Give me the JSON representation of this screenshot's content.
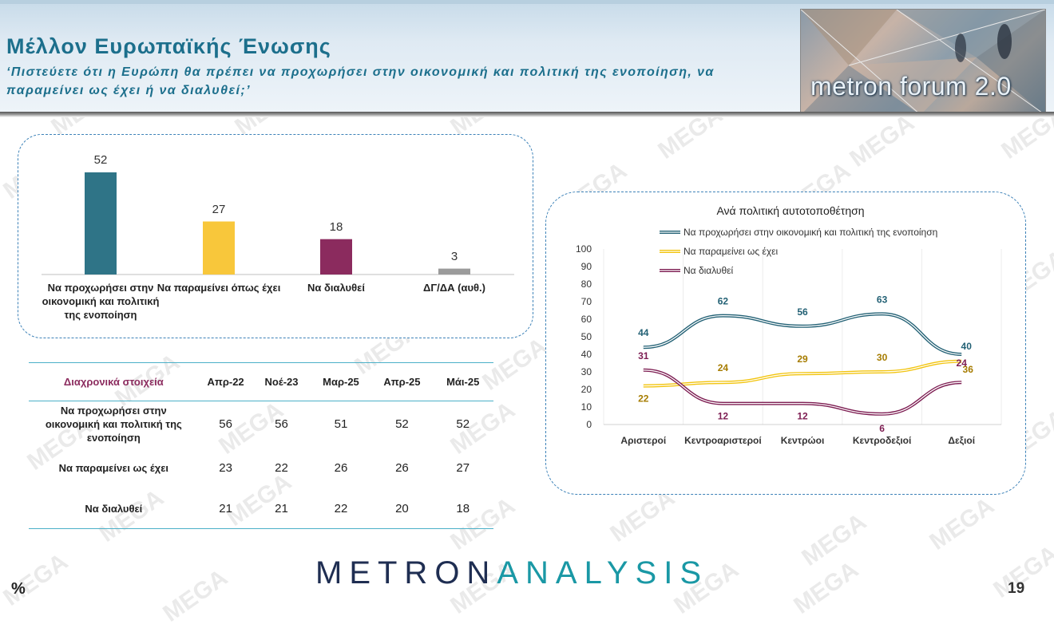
{
  "header": {
    "title": "Μέλλον Ευρωπαϊκής Ένωσης",
    "subtitle": "‘Πιστεύετε ότι η Ευρώπη θα πρέπει να προχωρήσει στην οικονομική και πολιτική της ενοποίηση, να παραμείνει ως έχει ή να διαλυθεί;’",
    "logo_text": "metron forum 2.0"
  },
  "colors": {
    "teal": "#2f7487",
    "yellow": "#f8c73b",
    "maroon": "#8b2b5e",
    "gray": "#9b9b9b",
    "accent": "#1c6f8c",
    "line_teal": "#236175",
    "line_yellow": "#f2c40e",
    "line_maroon": "#7d1d52"
  },
  "chart_data": [
    {
      "type": "bar",
      "categories": [
        "Να προχωρήσει στην οικονομική και πολιτική της ενοποίηση",
        "Να παραμείνει όπως έχει",
        "Να διαλυθεί",
        "ΔΓ/ΔΑ (αυθ.)"
      ],
      "values": [
        52,
        27,
        18,
        3
      ],
      "ylim": [
        0,
        52
      ],
      "grid": false,
      "legend": "none"
    },
    {
      "type": "line",
      "title": "Ανά πολιτική αυτοτοποθέτηση",
      "categories": [
        "Αριστεροί",
        "Κεντροαριστεροί",
        "Κεντρώοι",
        "Κεντροδεξιοί",
        "Δεξιοί"
      ],
      "yticks": [
        "0",
        "10",
        "20",
        "30",
        "40",
        "50",
        "60",
        "70",
        "80",
        "90",
        "100"
      ],
      "ylim": [
        0,
        100
      ],
      "grid": true,
      "legend": "top",
      "series": [
        {
          "name": "Να προχωρήσει στην οικονομική και πολιτική της ενοποίηση",
          "values": [
            44,
            62,
            56,
            63,
            40
          ]
        },
        {
          "name": "Να παραμείνει ως έχει",
          "values": [
            22,
            24,
            29,
            30,
            36
          ]
        },
        {
          "name": "Να διαλυθεί",
          "values": [
            31,
            12,
            12,
            6,
            24
          ]
        }
      ]
    },
    {
      "type": "table",
      "header": "Διαχρονικά στοιχεία",
      "columns": [
        "Απρ-22",
        "Νοέ-23",
        "Μαρ-25",
        "Απρ-25",
        "Μάι-25"
      ],
      "rows": [
        {
          "label": "Να προχωρήσει στην οικονομική και πολιτική της ενοποίηση",
          "values": [
            "56",
            "56",
            "51",
            "52",
            "52"
          ]
        },
        {
          "label": "Να παραμείνει ως έχει",
          "values": [
            "23",
            "22",
            "26",
            "26",
            "27"
          ]
        },
        {
          "label": "Να διαλυθεί",
          "values": [
            "21",
            "21",
            "22",
            "20",
            "18"
          ]
        }
      ]
    }
  ],
  "watermark": "MEGA",
  "footer": {
    "brand_part1": "METRON",
    "brand_part2": "ANALYSIS",
    "percent_sign": "%",
    "page_number": "19"
  }
}
